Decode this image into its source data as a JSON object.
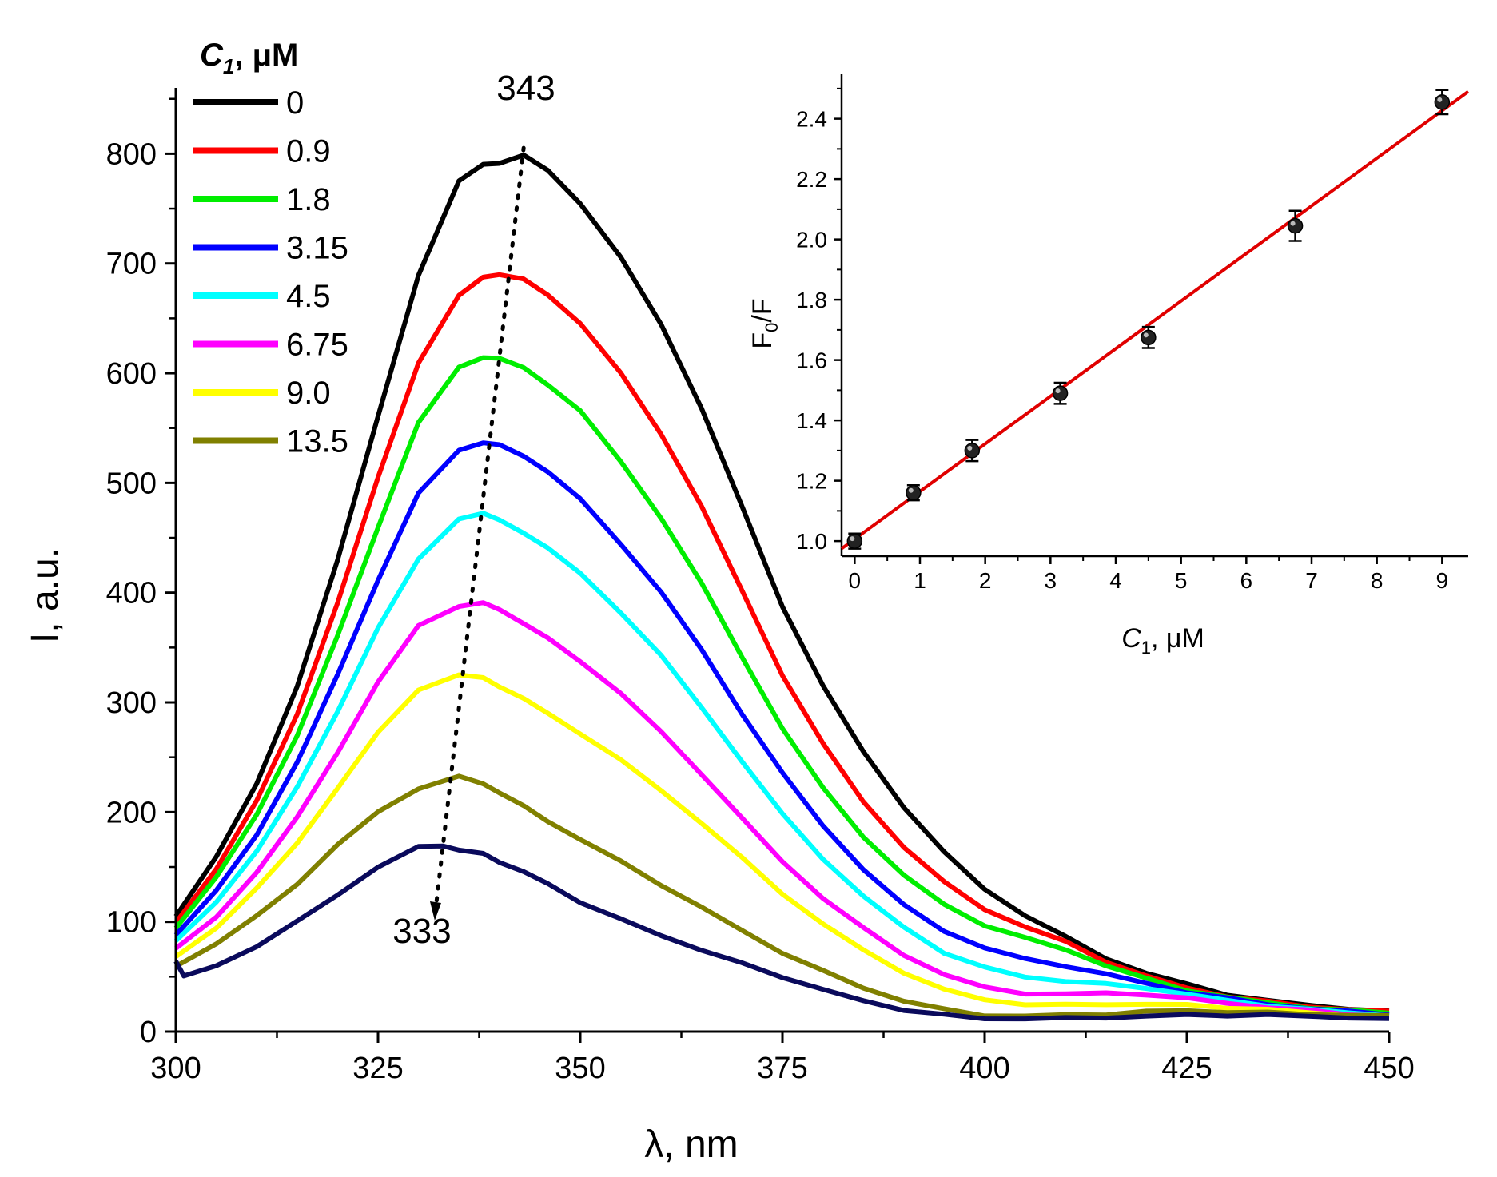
{
  "chart_data": [
    {
      "type": "line",
      "title": "",
      "xlabel": "λ, nm",
      "ylabel": "I, a.u.",
      "xlim": [
        300,
        450
      ],
      "ylim": [
        0,
        860
      ],
      "xticks": [
        300,
        325,
        350,
        375,
        400,
        425,
        450
      ],
      "yticks": [
        0,
        100,
        200,
        300,
        400,
        500,
        600,
        700,
        800
      ],
      "grid": false,
      "legend": {
        "title_italic": "C",
        "title_sub": "1",
        "title_rest": ", μM",
        "placement": "top-left"
      },
      "series": [
        {
          "name": "0",
          "color": "#000000",
          "x": [
            300,
            305,
            310,
            315,
            320,
            325,
            330,
            335,
            338,
            340,
            343,
            346,
            350,
            355,
            360,
            365,
            370,
            375,
            380,
            385,
            390,
            395,
            400,
            405,
            410,
            415,
            420,
            425,
            430,
            435,
            440,
            445,
            450
          ],
          "values": [
            105,
            160,
            225,
            315,
            430,
            560,
            690,
            775,
            790,
            792,
            798,
            785,
            755,
            705,
            645,
            568,
            478,
            388,
            315,
            255,
            205,
            163,
            130,
            106,
            86,
            67,
            53,
            43,
            34,
            28,
            24,
            21,
            18
          ]
        },
        {
          "name": "0.9",
          "color": "#ff0000",
          "x": [
            300,
            305,
            310,
            315,
            320,
            325,
            330,
            335,
            338,
            340,
            343,
            346,
            350,
            355,
            360,
            365,
            370,
            375,
            380,
            385,
            390,
            395,
            400,
            405,
            410,
            415,
            420,
            425,
            430,
            435,
            440,
            445,
            450
          ],
          "values": [
            100,
            148,
            210,
            290,
            390,
            505,
            610,
            670,
            688,
            690,
            685,
            672,
            645,
            600,
            545,
            478,
            402,
            325,
            262,
            210,
            168,
            136,
            112,
            95,
            82,
            64,
            50,
            40,
            32,
            27,
            23,
            20,
            18
          ]
        },
        {
          "name": "1.8",
          "color": "#00ee00",
          "x": [
            300,
            305,
            310,
            315,
            320,
            325,
            330,
            335,
            338,
            340,
            343,
            346,
            350,
            355,
            360,
            365,
            370,
            375,
            380,
            385,
            390,
            395,
            400,
            405,
            410,
            415,
            420,
            425,
            430,
            435,
            440,
            445,
            450
          ],
          "values": [
            95,
            140,
            198,
            270,
            360,
            460,
            555,
            605,
            615,
            613,
            605,
            590,
            565,
            520,
            468,
            408,
            342,
            276,
            222,
            178,
            142,
            116,
            97,
            85,
            75,
            60,
            48,
            38,
            31,
            26,
            22,
            19,
            17
          ]
        },
        {
          "name": "3.15",
          "color": "#0000ff",
          "x": [
            300,
            305,
            310,
            315,
            320,
            325,
            330,
            335,
            338,
            340,
            343,
            346,
            350,
            355,
            360,
            365,
            370,
            375,
            380,
            385,
            390,
            395,
            400,
            405,
            410,
            415,
            420,
            425,
            430,
            435,
            440,
            445,
            450
          ],
          "values": [
            88,
            128,
            180,
            245,
            325,
            412,
            490,
            530,
            537,
            534,
            525,
            510,
            485,
            445,
            400,
            348,
            290,
            235,
            188,
            148,
            115,
            92,
            76,
            66,
            60,
            52,
            44,
            36,
            30,
            25,
            21,
            18,
            16
          ]
        },
        {
          "name": "4.5",
          "color": "#00ffff",
          "x": [
            300,
            305,
            310,
            315,
            320,
            325,
            330,
            335,
            338,
            340,
            343,
            346,
            350,
            355,
            360,
            365,
            370,
            375,
            380,
            385,
            390,
            395,
            400,
            405,
            410,
            415,
            420,
            425,
            430,
            435,
            440,
            445,
            450
          ],
          "values": [
            82,
            118,
            165,
            222,
            292,
            368,
            430,
            468,
            472,
            466,
            455,
            440,
            418,
            382,
            342,
            296,
            246,
            198,
            158,
            123,
            95,
            72,
            58,
            50,
            46,
            43,
            40,
            34,
            28,
            24,
            20,
            17,
            15
          ]
        },
        {
          "name": "6.75",
          "color": "#ff00ff",
          "x": [
            300,
            305,
            310,
            315,
            320,
            325,
            330,
            335,
            338,
            340,
            343,
            346,
            350,
            355,
            360,
            365,
            370,
            375,
            380,
            385,
            390,
            395,
            400,
            405,
            410,
            415,
            420,
            425,
            430,
            435,
            440,
            445,
            450
          ],
          "values": [
            75,
            105,
            145,
            195,
            255,
            318,
            370,
            388,
            390,
            385,
            372,
            358,
            338,
            308,
            273,
            235,
            194,
            155,
            122,
            94,
            70,
            52,
            40,
            35,
            34,
            35,
            34,
            30,
            26,
            22,
            19,
            16,
            14
          ]
        },
        {
          "name": "9.0",
          "color": "#ffff00",
          "x": [
            300,
            305,
            310,
            315,
            320,
            325,
            330,
            335,
            338,
            340,
            343,
            346,
            350,
            355,
            360,
            365,
            370,
            375,
            380,
            385,
            390,
            395,
            400,
            405,
            410,
            415,
            420,
            425,
            430,
            435,
            440,
            445,
            450
          ],
          "values": [
            68,
            95,
            130,
            172,
            222,
            272,
            312,
            325,
            322,
            315,
            303,
            290,
            272,
            247,
            220,
            190,
            158,
            126,
            98,
            74,
            54,
            38,
            29,
            25,
            24,
            25,
            25,
            24,
            22,
            20,
            17,
            15,
            13
          ]
        },
        {
          "name": "13.5",
          "color": "#808000",
          "x": [
            300,
            305,
            310,
            315,
            320,
            325,
            330,
            335,
            338,
            340,
            343,
            346,
            350,
            355,
            360,
            365,
            370,
            375,
            380,
            385,
            390,
            395,
            400,
            405,
            410,
            415,
            420,
            425,
            430,
            435,
            440,
            445,
            450
          ],
          "values": [
            60,
            80,
            105,
            135,
            170,
            200,
            222,
            232,
            226,
            218,
            205,
            192,
            175,
            155,
            134,
            113,
            92,
            72,
            55,
            40,
            28,
            20,
            15,
            14,
            15,
            16,
            18,
            19,
            18,
            17,
            16,
            15,
            14
          ]
        },
        {
          "name": "",
          "color": "#0a0a5c",
          "x": [
            300,
            301,
            305,
            310,
            315,
            320,
            325,
            330,
            333,
            335,
            338,
            340,
            343,
            346,
            350,
            355,
            360,
            365,
            370,
            375,
            380,
            385,
            390,
            395,
            400,
            405,
            410,
            415,
            420,
            425,
            430,
            435,
            440,
            445,
            450
          ],
          "values": [
            65,
            50,
            60,
            78,
            100,
            125,
            150,
            168,
            170,
            165,
            162,
            155,
            145,
            135,
            118,
            102,
            88,
            74,
            62,
            50,
            38,
            28,
            20,
            15,
            12,
            12,
            12,
            13,
            14,
            15,
            15,
            15,
            14,
            13,
            11
          ]
        }
      ],
      "annotations": [
        {
          "text": "343",
          "x": 343
        },
        {
          "text": "333",
          "x": 333
        }
      ]
    },
    {
      "type": "scatter",
      "title": "",
      "xlabel_italic": "C",
      "xlabel_sub": "1",
      "xlabel_rest": ", μM",
      "ylabel_main": "F",
      "ylabel_sub": "0",
      "ylabel_rest": "/F",
      "xlim": [
        -0.2,
        9.4
      ],
      "ylim": [
        0.95,
        2.55
      ],
      "xticks": [
        0,
        1,
        2,
        3,
        4,
        5,
        6,
        7,
        8,
        9
      ],
      "yticks": [
        "1.0",
        "1.2",
        "1.4",
        "1.6",
        "1.8",
        "2.0",
        "2.2",
        "2.4"
      ],
      "grid": false,
      "points": {
        "x": [
          0,
          0.9,
          1.8,
          3.15,
          4.5,
          6.75,
          9.0
        ],
        "y": [
          1.0,
          1.16,
          1.3,
          1.49,
          1.675,
          2.045,
          2.455
        ],
        "error": [
          0.025,
          0.025,
          0.035,
          0.035,
          0.035,
          0.05,
          0.04
        ]
      },
      "fit_line": {
        "color": "#e00000",
        "x": [
          -0.2,
          9.4
        ],
        "y": [
          0.975,
          2.49
        ]
      }
    }
  ]
}
